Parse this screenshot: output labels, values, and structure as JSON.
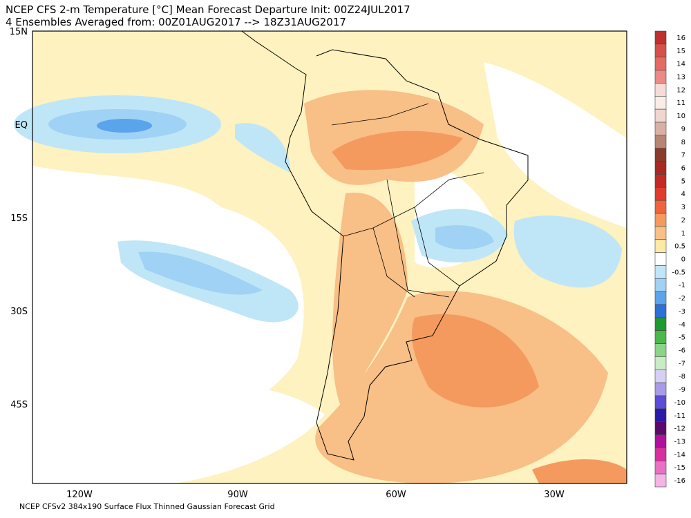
{
  "header": {
    "line1": "NCEP CFS 2-m Temperature [°C] Mean Forecast Departure Init: 00Z24JUL2017",
    "line2": "4 Ensembles Averaged from: 00Z01AUG2017 --> 18Z31AUG2017"
  },
  "map": {
    "lat_labels": [
      "15N",
      "EQ",
      "15S",
      "30S",
      "45S"
    ],
    "lon_labels": [
      "120W",
      "90W",
      "60W",
      "30W"
    ]
  },
  "footer": "NCEP CFSv2 384x190 Surface Flux Thinned Gaussian Forecast Grid",
  "colorbar": {
    "levels": [
      {
        "value": 16,
        "color": "#c0302d"
      },
      {
        "value": 15,
        "color": "#d9504a"
      },
      {
        "value": 14,
        "color": "#e46a64"
      },
      {
        "value": 13,
        "color": "#ec8a86"
      },
      {
        "value": 12,
        "color": "#f6dcd8"
      },
      {
        "value": 11,
        "color": "#faece8"
      },
      {
        "value": 10,
        "color": "#efd6cf"
      },
      {
        "value": 9,
        "color": "#d8b0a4"
      },
      {
        "value": 8,
        "color": "#b88474"
      },
      {
        "value": 7,
        "color": "#8c3a2c"
      },
      {
        "value": 6,
        "color": "#a62a22"
      },
      {
        "value": 5,
        "color": "#c42a24"
      },
      {
        "value": 4,
        "color": "#e03c2c"
      },
      {
        "value": 3,
        "color": "#f0643c"
      },
      {
        "value": 2,
        "color": "#f59a5e"
      },
      {
        "value": 1,
        "color": "#f8bf86"
      },
      {
        "value": 0.5,
        "color": "#fbe9a4"
      },
      {
        "value": 0,
        "color": "#ffffff"
      },
      {
        "value": -0.5,
        "color": "#bfe6f6"
      },
      {
        "value": -1,
        "color": "#9fd2f4"
      },
      {
        "value": -2,
        "color": "#5aa4ec"
      },
      {
        "value": -3,
        "color": "#2c70d8"
      },
      {
        "value": -4,
        "color": "#1e9a32"
      },
      {
        "value": -5,
        "color": "#4ab84a"
      },
      {
        "value": -6,
        "color": "#8ad488"
      },
      {
        "value": -7,
        "color": "#c8ecc4"
      },
      {
        "value": -8,
        "color": "#d6d0f4"
      },
      {
        "value": -9,
        "color": "#a89ce8"
      },
      {
        "value": -10,
        "color": "#5c4cd8"
      },
      {
        "value": -11,
        "color": "#2a1aa8"
      },
      {
        "value": -12,
        "color": "#5a0a6a"
      },
      {
        "value": -13,
        "color": "#b0109c"
      },
      {
        "value": -14,
        "color": "#d8309c"
      },
      {
        "value": -15,
        "color": "#ea70c4"
      },
      {
        "value": -16,
        "color": "#f4b4e4"
      }
    ]
  }
}
